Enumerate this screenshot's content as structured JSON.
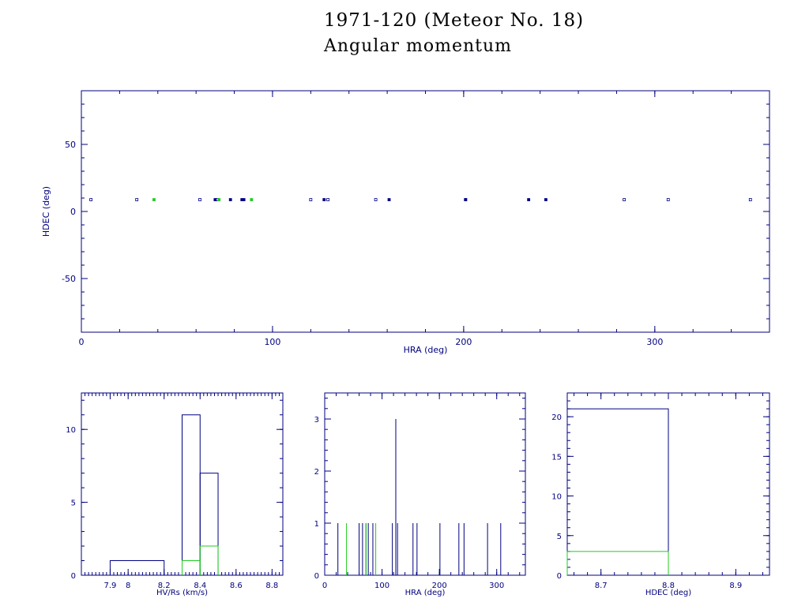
{
  "title": "1971-120 (Meteor No. 18)",
  "subtitle": "Angular momentum",
  "colors": {
    "axis": "#000080",
    "series_main": "#000080",
    "series_highlight": "#22cc22"
  },
  "chart_data": [
    {
      "type": "scatter",
      "xlabel": "HRA (deg)",
      "ylabel": "HDEC (deg)",
      "xlim": [
        0,
        360
      ],
      "ylim": [
        -90,
        90
      ],
      "xticks": [
        0,
        100,
        200,
        300
      ],
      "yticks": [
        -50,
        0,
        50
      ],
      "grid": false,
      "series": [
        {
          "color": "#000080",
          "marker": "square-open",
          "points": [
            [
              5,
              8.8
            ],
            [
              29,
              8.8
            ],
            [
              62,
              8.8
            ],
            [
              71,
              8.8
            ],
            [
              120,
              8.8
            ],
            [
              129,
              8.8
            ],
            [
              154,
              8.8
            ],
            [
              201,
              8.8
            ],
            [
              284,
              8.8
            ],
            [
              307,
              8.8
            ],
            [
              350,
              8.8
            ]
          ]
        },
        {
          "color": "#000080",
          "marker": "square-filled",
          "points": [
            [
              70,
              8.8
            ],
            [
              78,
              8.8
            ],
            [
              84,
              8.8
            ],
            [
              85,
              8.8
            ],
            [
              127,
              8.8
            ],
            [
              161,
              8.8
            ],
            [
              201,
              8.8
            ],
            [
              234,
              8.8
            ],
            [
              243,
              8.8
            ]
          ]
        },
        {
          "color": "#22cc22",
          "marker": "square-filled",
          "points": [
            [
              38,
              8.8
            ],
            [
              72,
              8.8
            ],
            [
              89,
              8.8
            ]
          ]
        }
      ]
    },
    {
      "type": "bar",
      "xlabel": "HV/Rs (km/s)",
      "xlim": [
        7.74,
        8.86
      ],
      "ylim": [
        0,
        12.5
      ],
      "xticks": [
        7.9,
        8,
        8.2,
        8.4,
        8.6,
        8.8
      ],
      "xtick_labels": [
        "7.9",
        "8",
        "8.2",
        "8.4",
        "8.6",
        "8.8"
      ],
      "yticks": [
        0,
        5,
        10
      ],
      "grid": false,
      "series": [
        {
          "color": "#000080",
          "bins": [
            [
              7.9,
              8.2,
              1
            ],
            [
              8.3,
              8.4,
              11
            ],
            [
              8.4,
              8.5,
              7
            ]
          ]
        },
        {
          "color": "#22cc22",
          "bins": [
            [
              8.3,
              8.4,
              1
            ],
            [
              8.4,
              8.5,
              2
            ]
          ]
        }
      ]
    },
    {
      "type": "bar",
      "xlabel": "HRA (deg)",
      "xlim": [
        0,
        350
      ],
      "ylim": [
        0,
        3.5
      ],
      "xticks": [
        0,
        100,
        200,
        300
      ],
      "yticks": [
        0,
        1,
        2,
        3
      ],
      "grid": false,
      "series": [
        {
          "color": "#000080",
          "spikes": [
            [
              23,
              1
            ],
            [
              60,
              1
            ],
            [
              66,
              1
            ],
            [
              72,
              1
            ],
            [
              76,
              1
            ],
            [
              84,
              1
            ],
            [
              118,
              1
            ],
            [
              124,
              3
            ],
            [
              127,
              1
            ],
            [
              154,
              1
            ],
            [
              161,
              1
            ],
            [
              201,
              1
            ],
            [
              234,
              1
            ],
            [
              243,
              1
            ],
            [
              284,
              1
            ],
            [
              307,
              1
            ],
            [
              350,
              1
            ]
          ]
        },
        {
          "color": "#22cc22",
          "spikes": [
            [
              38,
              1
            ],
            [
              72,
              1
            ],
            [
              89,
              1
            ]
          ]
        }
      ]
    },
    {
      "type": "bar",
      "xlabel": "HDEC (deg)",
      "xlim": [
        8.65,
        8.95
      ],
      "ylim": [
        0,
        23
      ],
      "xticks": [
        8.7,
        8.8,
        8.9
      ],
      "xtick_labels": [
        "8.7",
        "8.8",
        "8.9"
      ],
      "yticks": [
        0,
        5,
        10,
        15,
        20
      ],
      "grid": false,
      "series": [
        {
          "color": "#000080",
          "bins": [
            [
              8.65,
              8.8,
              21
            ]
          ]
        },
        {
          "color": "#22cc22",
          "bins": [
            [
              8.65,
              8.8,
              3
            ]
          ]
        }
      ]
    }
  ]
}
